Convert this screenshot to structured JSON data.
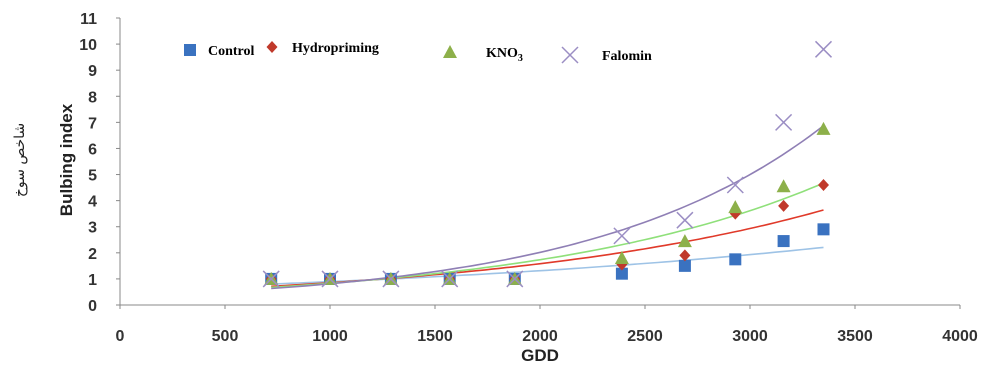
{
  "chart_data": {
    "type": "scatter",
    "xlabel": "GDD",
    "ylabel": "Bulbing index",
    "ylabel_secondary": "شاخص سوخ",
    "xlim": [
      0,
      4000
    ],
    "ylim": [
      0,
      11
    ],
    "x_ticks": [
      0,
      500,
      1000,
      1500,
      2000,
      2500,
      3000,
      3500,
      4000
    ],
    "y_ticks": [
      0,
      1,
      2,
      3,
      4,
      5,
      6,
      7,
      8,
      9,
      10,
      11
    ],
    "grid": false,
    "legend_position": "top",
    "trendlines": true,
    "x": [
      720,
      1000,
      1290,
      1570,
      1880,
      2390,
      2690,
      2930,
      3160,
      3350
    ],
    "series": [
      {
        "name": "Control",
        "marker": "square",
        "color": "#3a72c0",
        "trend_color": "#9ec3e6",
        "values": [
          1.0,
          1.0,
          1.0,
          1.0,
          1.0,
          1.2,
          1.5,
          1.75,
          2.45,
          2.9
        ]
      },
      {
        "name": "Hydropriming",
        "marker": "diamond",
        "color": "#c0392b",
        "trend_color": "#e03a2a",
        "values": [
          1.0,
          1.0,
          1.0,
          1.0,
          1.0,
          1.55,
          1.9,
          3.5,
          3.8,
          4.6
        ]
      },
      {
        "name": "KNO",
        "name_subscript": "3",
        "marker": "triangle",
        "color": "#8db04a",
        "trend_color": "#8fe07a",
        "values": [
          1.0,
          1.0,
          1.0,
          1.0,
          1.0,
          1.8,
          2.45,
          3.75,
          4.55,
          6.75
        ]
      },
      {
        "name": "Falomin",
        "marker": "x",
        "color": "#9b8ec4",
        "trend_color": "#8f7fb5",
        "values": [
          1.0,
          1.0,
          1.0,
          1.0,
          1.0,
          2.65,
          3.25,
          4.6,
          7.0,
          9.8
        ]
      }
    ]
  }
}
